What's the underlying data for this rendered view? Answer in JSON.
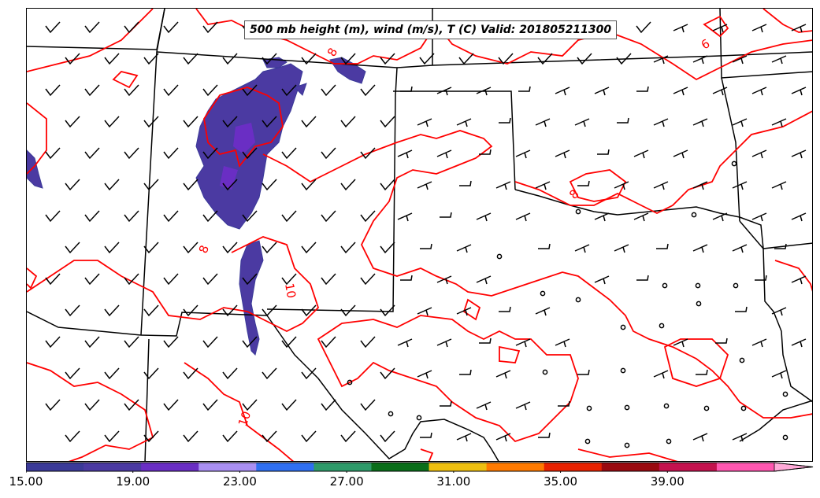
{
  "title": "500 mb height (m), wind (m/s), T (C) Valid: 201805211300",
  "contour_labels": [
    "6",
    "8",
    "8",
    "8",
    "10",
    "10"
  ],
  "colorbar": {
    "tick_labels": [
      "15.00",
      "19.00",
      "23.00",
      "27.00",
      "31.00",
      "35.00",
      "39.00"
    ],
    "tick_values": [
      15,
      19,
      23,
      27,
      31,
      35,
      39
    ],
    "min": 15,
    "max": 43,
    "colors": [
      "#3b3a98",
      "#4b3aa2",
      "#6a2ec4",
      "#a98ff2",
      "#2f6ff0",
      "#2e9a6a",
      "#0a6e1a",
      "#eebf10",
      "#ff7a00",
      "#e82200",
      "#9a0a10",
      "#c4124e",
      "#ff57b0",
      "#ffaad8"
    ]
  },
  "colors": {
    "temperature_contour": "#ff0000",
    "boundaries": "#000000",
    "wind_barbs": "#000000",
    "shaded_region": "#4b3aa2"
  },
  "icons": [
    "wind-barb-icon",
    "calm-circle-icon"
  ]
}
